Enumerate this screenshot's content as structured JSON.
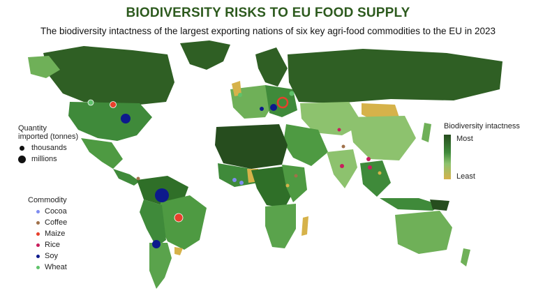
{
  "header": {
    "title": "BIODIVERSITY RISKS TO EU FOOD SUPPLY",
    "subtitle": "The biodiversity intactness of the largest exporting nations of six key agri-food commodities to the EU in 2023"
  },
  "colors": {
    "most": "#264d1e",
    "high": "#3f8a3a",
    "mid": "#6fb058",
    "low": "#9ccb6e",
    "least": "#d6b24a",
    "ocean": "#ffffff",
    "cocoa": "#7f8cf0",
    "coffee": "#a0714a",
    "maize": "#e8402c",
    "rice": "#c81d5c",
    "soy": "#0d1a8c",
    "wheat": "#5fc26a"
  },
  "quantity_legend": {
    "title_line1": "Quantity",
    "title_line2": "imported (tonnes)",
    "items": [
      "thousands",
      "millions"
    ]
  },
  "commodity_legend": {
    "title": "Commodity",
    "items": [
      "Cocoa",
      "Coffee",
      "Maize",
      "Rice",
      "Soy",
      "Wheat"
    ]
  },
  "intactness_legend": {
    "title": "Biodiversity intactness",
    "most_label": "Most",
    "least_label": "Least"
  }
}
